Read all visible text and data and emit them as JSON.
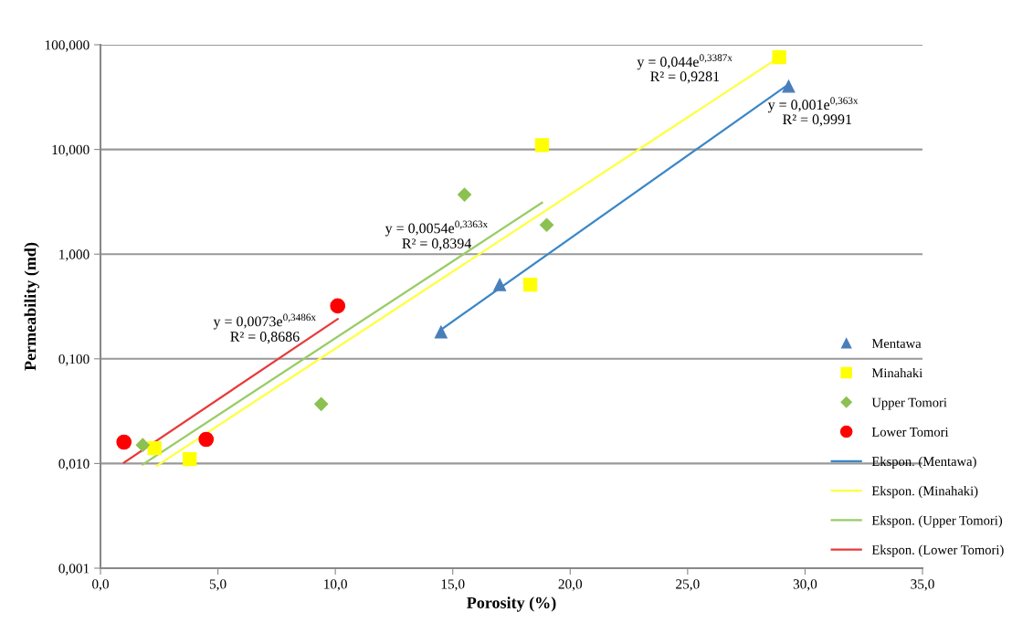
{
  "chart_data": {
    "type": "scatter",
    "xlabel": "Porosity (%)",
    "ylabel": "Permeability (md)",
    "log": "y",
    "grid": "y",
    "legend": "right",
    "xlim": [
      0,
      35
    ],
    "xticks": [
      {
        "value": 0,
        "label": "0,0"
      },
      {
        "value": 5,
        "label": "5,0"
      },
      {
        "value": 10,
        "label": "10,0"
      },
      {
        "value": 15,
        "label": "15,0"
      },
      {
        "value": 20,
        "label": "20,0"
      },
      {
        "value": 25,
        "label": "25,0"
      },
      {
        "value": 30,
        "label": "30,0"
      },
      {
        "value": 35,
        "label": "35,0"
      }
    ],
    "ylim": [
      0.001,
      100
    ],
    "yticks": [
      {
        "value": 0.001,
        "label": "0,001"
      },
      {
        "value": 0.01,
        "label": "0,010"
      },
      {
        "value": 0.1,
        "label": "0,100"
      },
      {
        "value": 1,
        "label": "1,000"
      },
      {
        "value": 10,
        "label": "10,000"
      },
      {
        "value": 100,
        "label": "100,000"
      }
    ],
    "series": [
      {
        "name": "Mentawa",
        "marker": "triangle",
        "color": "#4a7ebb",
        "x": [
          14.5,
          17.0,
          29.3
        ],
        "values": [
          0.18,
          0.51,
          40
        ]
      },
      {
        "name": "Minahaki",
        "marker": "square",
        "color": "#ffff00",
        "x": [
          2.3,
          3.8,
          18.3,
          18.8,
          28.9
        ],
        "values": [
          0.014,
          0.011,
          0.51,
          11,
          76
        ]
      },
      {
        "name": "Upper Tomori",
        "marker": "diamond",
        "color": "#8cc152",
        "x": [
          1.8,
          9.4,
          15.5,
          19.0
        ],
        "values": [
          0.015,
          0.037,
          3.7,
          1.9
        ]
      },
      {
        "name": "Lower Tomori",
        "marker": "circle",
        "color": "#ff0000",
        "x": [
          1.0,
          4.5,
          10.1
        ],
        "values": [
          0.016,
          0.017,
          0.32
        ]
      },
      {
        "name": "Ekspon. (Mentawa)",
        "type": "line",
        "color": "#3a87c8",
        "x": [
          14.5,
          29.3
        ],
        "values": [
          0.19,
          42
        ]
      },
      {
        "name": "Ekspon. (Minahaki)",
        "type": "line",
        "color": "#ffff40",
        "x": [
          2.4,
          28.9
        ],
        "values": [
          0.0095,
          76
        ]
      },
      {
        "name": "Ekspon. (Upper Tomori)",
        "type": "line",
        "color": "#99cc66",
        "x": [
          1.8,
          18.8
        ],
        "values": [
          0.0098,
          3.1
        ]
      },
      {
        "name": "Ekspon. (Lower Tomori)",
        "type": "line",
        "color": "#e83a3a",
        "x": [
          1.0,
          10.1
        ],
        "values": [
          0.0102,
          0.24
        ]
      }
    ],
    "annotations": [
      "y = 0,044e$^{0,3387x}$",
      "R² = 0,9281",
      "y = 0,001e$^{0,363x}$",
      "R² = 0,9991",
      "y = 0,0054e$^{0,3363x}$",
      "R² = 0,8394",
      "y = 0,0073e$^{0,3486x}$",
      "R² = 0,8686"
    ]
  }
}
